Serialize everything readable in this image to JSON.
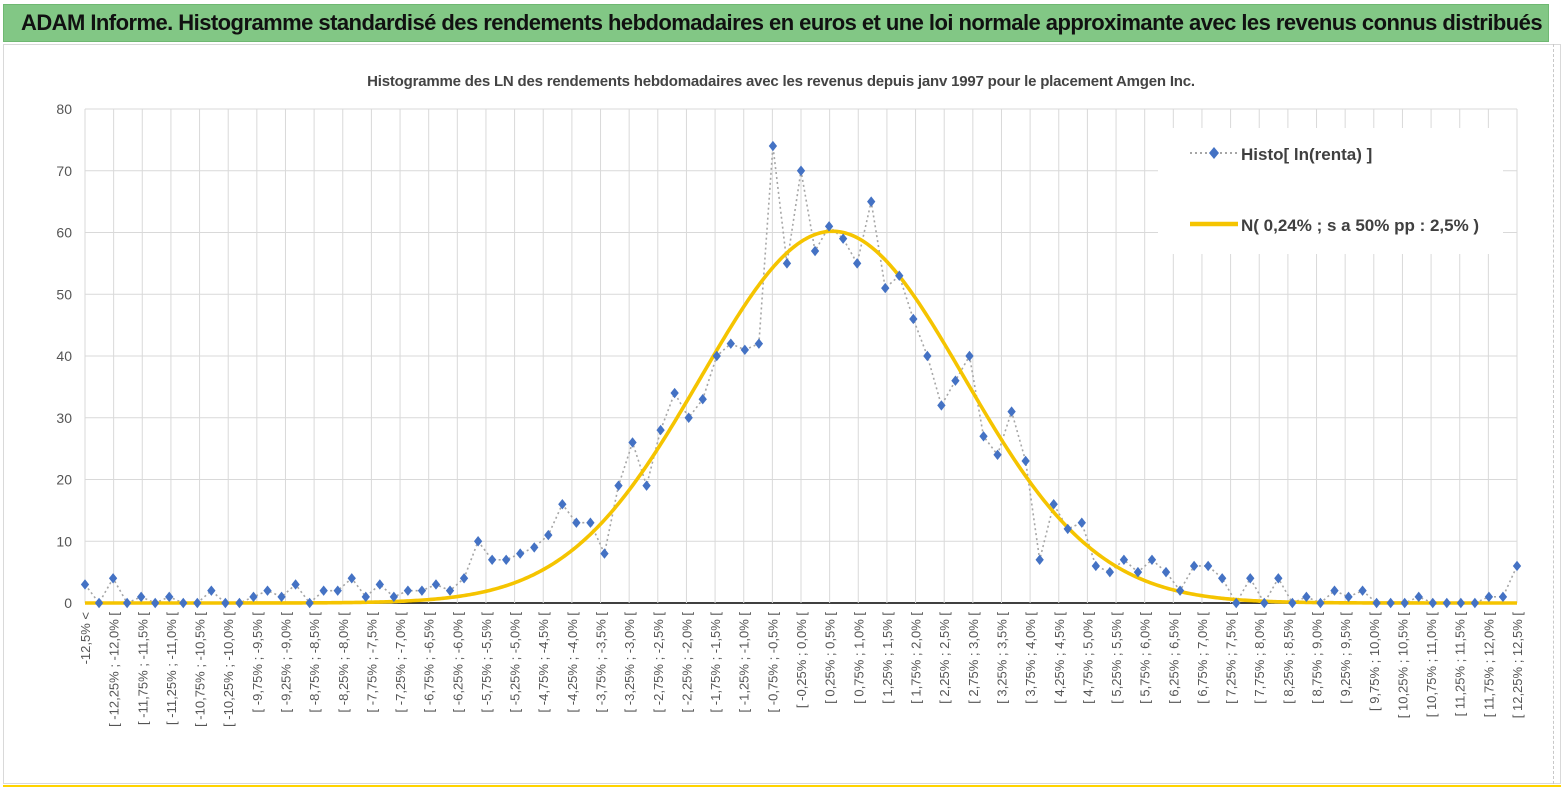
{
  "banner": {
    "title": "ADAM Informe. Histogramme standardisé des rendements hebdomadaires en euros et une loi normale approximante avec les revenus connus distribués"
  },
  "chart_data": {
    "type": "line",
    "title": "Histogramme des LN des rendements hebdomadaires avec les revenus depuis janv 1997 pour le placement Amgen Inc.",
    "xlabel": "",
    "ylabel": "",
    "ylim": [
      0,
      80
    ],
    "yticks": [
      0,
      10,
      20,
      30,
      40,
      50,
      60,
      70,
      80
    ],
    "grid": true,
    "legend_position": "top-right",
    "categories": [
      "-12,5% <",
      "[ -12,25% ; -12,0% [",
      "[ -11,75% ; -11,5% [",
      "[ -11,25% ; -11,0% [",
      "[ -10,75% ; -10,5% [",
      "[ -10,25% ; -10,0% [",
      "[ -9,75% ; -9,5% [",
      "[ -9,25% ; -9,0% [",
      "[ -8,75% ; -8,5% [",
      "[ -8,25% ; -8,0% [",
      "[ -7,75% ; -7,5% [",
      "[ -7,25% ; -7,0% [",
      "[ -6,75% ; -6,5% [",
      "[ -6,25% ; -6,0% [",
      "[ -5,75% ; -5,5% [",
      "[ -5,25% ; -5,0% [",
      "[ -4,75% ; -4,5% [",
      "[ -4,25% ; -4,0% [",
      "[ -3,75% ; -3,5% [",
      "[ -3,25% ; -3,0% [",
      "[ -2,75% ; -2,5% [",
      "[ -2,25% ; -2,0% [",
      "[ -1,75% ; -1,5% [",
      "[ -1,25% ; -1,0% [",
      "[ -0,75% ; -0,5% [",
      "[ -0,25% ; 0,0% [",
      "[ 0,25% ; 0,5% [",
      "[ 0,75% ; 1,0% [",
      "[ 1,25% ; 1,5% [",
      "[ 1,75% ; 2,0% [",
      "[ 2,25% ; 2,5% [",
      "[ 2,75% ; 3,0% [",
      "[ 3,25% ; 3,5% [",
      "[ 3,75% ; 4,0% [",
      "[ 4,25% ; 4,5% [",
      "[ 4,75% ; 5,0% [",
      "[ 5,25% ; 5,5% [",
      "[ 5,75% ; 6,0% [",
      "[ 6,25% ; 6,5% [",
      "[ 6,75% ; 7,0% [",
      "[ 7,25% ; 7,5% [",
      "[ 7,75% ; 8,0% [",
      "[ 8,25% ; 8,5% [",
      "[ 8,75% ; 9,0% [",
      "[ 9,25% ; 9,5% [",
      "[ 9,75% ; 10,0% [",
      "[ 10,25% ; 10,5% [",
      "[ 10,75% ; 11,0% [",
      "[ 11,25% ; 11,5% [",
      "[ 11,75% ; 12,0% [",
      "[ 12,25% ; 12,5% ["
    ],
    "histogram": {
      "name": "Histo[ ln(renta) ]",
      "color": "#4472c4",
      "values": [
        3,
        0,
        4,
        0,
        1,
        0,
        1,
        0,
        0,
        2,
        0,
        0,
        1,
        2,
        1,
        3,
        0,
        2,
        2,
        4,
        1,
        3,
        1,
        2,
        2,
        3,
        2,
        4,
        10,
        7,
        7,
        8,
        9,
        11,
        16,
        13,
        13,
        8,
        19,
        26,
        19,
        28,
        34,
        30,
        33,
        40,
        42,
        41,
        42,
        74,
        55,
        70,
        57,
        61,
        59,
        55,
        65,
        51,
        53,
        46,
        40,
        32,
        36,
        40,
        27,
        24,
        31,
        23,
        7,
        16,
        12,
        13,
        6,
        5,
        7,
        5,
        7,
        5,
        2,
        6,
        6,
        4,
        0,
        4,
        0,
        4,
        0,
        1,
        0,
        2,
        1,
        2,
        0,
        0,
        0,
        1,
        0,
        0,
        0,
        0,
        1,
        1,
        6
      ]
    },
    "normal_fit": {
      "name": "N( 0,24% ; s a 50% pp : 2,5% )",
      "color": "#f5c400",
      "peak": 60.2,
      "peak_category_position": 26.1,
      "sigma_in_half_bins": 9.2
    }
  }
}
